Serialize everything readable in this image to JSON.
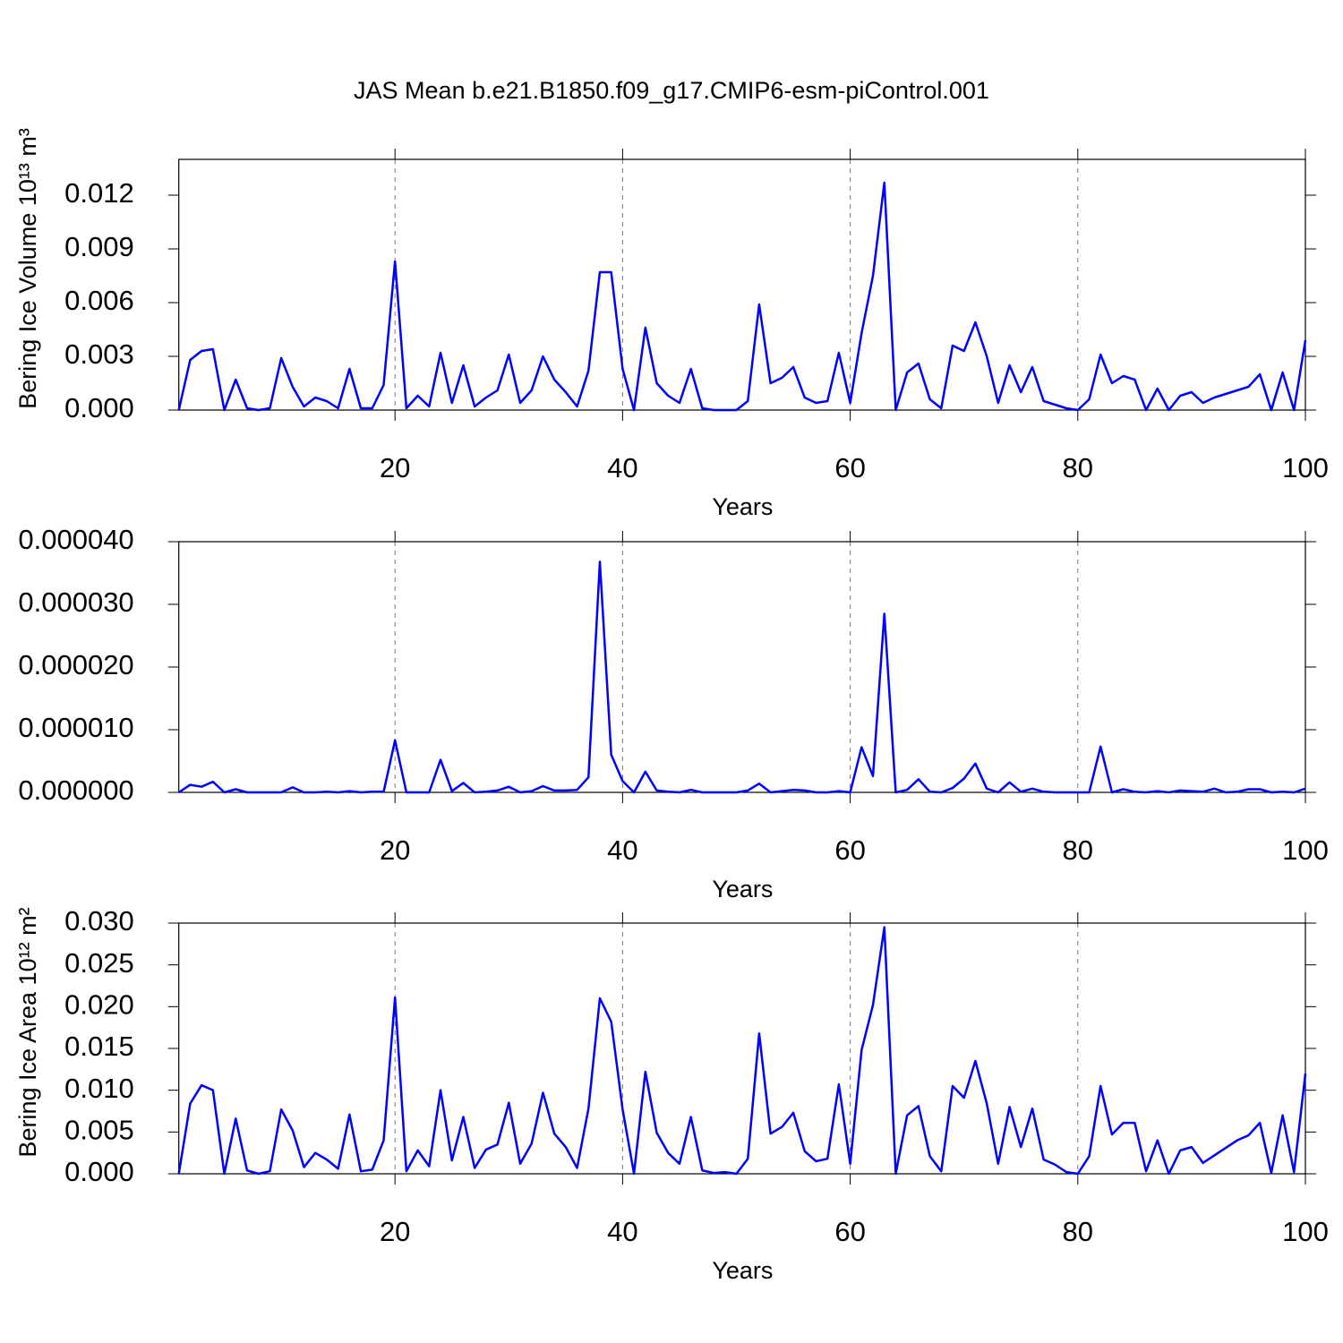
{
  "chart_data": [
    {
      "type": "line",
      "title": "JAS Mean b.e21.B1850.f09_g17.CMIP6-esm-piControl.001",
      "xlabel": "Years",
      "ylabel": "Bering Ice Volume 10¹³ m³",
      "grid": true,
      "x": [
        1,
        2,
        3,
        4,
        5,
        6,
        7,
        8,
        9,
        10,
        11,
        12,
        13,
        14,
        15,
        16,
        17,
        18,
        19,
        20,
        21,
        22,
        23,
        24,
        25,
        26,
        27,
        28,
        29,
        30,
        31,
        32,
        33,
        34,
        35,
        36,
        37,
        38,
        39,
        40,
        41,
        42,
        43,
        44,
        45,
        46,
        47,
        48,
        49,
        50,
        51,
        52,
        53,
        54,
        55,
        56,
        57,
        58,
        59,
        60,
        61,
        62,
        63,
        64,
        65,
        66,
        67,
        68,
        69,
        70,
        71,
        72,
        73,
        74,
        75,
        76,
        77,
        78,
        79,
        80,
        81,
        82,
        83,
        84,
        85,
        86,
        87,
        88,
        89,
        90,
        91,
        92,
        93,
        94,
        95,
        96,
        97,
        98,
        99,
        100
      ],
      "series": [
        {
          "color": "#0000ff",
          "values": [
            0,
            0.0028,
            0.0033,
            0.0034,
            0,
            0.0017,
            0.0001,
            0,
            0.0001,
            0.0029,
            0.0013,
            0.0002,
            0.0007,
            0.0005,
            0.0001,
            0.0023,
            0.0001,
            0.0001,
            0.0014,
            0.0083,
            0.0001,
            0.0008,
            0.0002,
            0.0032,
            0.0004,
            0.0025,
            0.0002,
            0.0007,
            0.0011,
            0.0031,
            0.0004,
            0.0011,
            0.003,
            0.0017,
            0.001,
            0.0002,
            0.0022,
            0.0077,
            0.0077,
            0.0023,
            0,
            0.0046,
            0.0015,
            0.0008,
            0.0004,
            0.0023,
            0.0001,
            0,
            0,
            0,
            0.0005,
            0.0059,
            0.0015,
            0.0018,
            0.0024,
            0.0007,
            0.0004,
            0.0005,
            0.0032,
            0.0004,
            0.0043,
            0.0075,
            0.0127,
            0,
            0.0021,
            0.0026,
            0.0006,
            0.0001,
            0.0036,
            0.0033,
            0.0049,
            0.003,
            0.0004,
            0.0025,
            0.001,
            0.0024,
            0.0005,
            0.0003,
            0.0001,
            0,
            0.0006,
            0.0031,
            0.0015,
            0.0019,
            0.0017,
            0,
            0.0012,
            0,
            0.0008,
            0.001,
            0.0004,
            0.0007,
            0.0009,
            0.0011,
            0.0013,
            0.002,
            0,
            0.0021,
            0,
            0.0039
          ]
        }
      ],
      "xlim": [
        1,
        100
      ],
      "xticks": [
        20,
        40,
        60,
        80,
        100
      ],
      "ylim": [
        0,
        0.014
      ],
      "yticks": [
        {
          "value": 0,
          "label": "0.000"
        },
        0.003,
        0.006,
        0.009,
        0.012
      ]
    },
    {
      "type": "line",
      "xlabel": "Years",
      "grid": true,
      "x": [
        1,
        2,
        3,
        4,
        5,
        6,
        7,
        8,
        9,
        10,
        11,
        12,
        13,
        14,
        15,
        16,
        17,
        18,
        19,
        20,
        21,
        22,
        23,
        24,
        25,
        26,
        27,
        28,
        29,
        30,
        31,
        32,
        33,
        34,
        35,
        36,
        37,
        38,
        39,
        40,
        41,
        42,
        43,
        44,
        45,
        46,
        47,
        48,
        49,
        50,
        51,
        52,
        53,
        54,
        55,
        56,
        57,
        58,
        59,
        60,
        61,
        62,
        63,
        64,
        65,
        66,
        67,
        68,
        69,
        70,
        71,
        72,
        73,
        74,
        75,
        76,
        77,
        78,
        79,
        80,
        81,
        82,
        83,
        84,
        85,
        86,
        87,
        88,
        89,
        90,
        91,
        92,
        93,
        94,
        95,
        96,
        97,
        98,
        99,
        100
      ],
      "series": [
        {
          "color": "#0000ff",
          "values": [
            0,
            1.2e-06,
            9e-07,
            1.7e-06,
            0,
            5e-07,
            0,
            0,
            0,
            0,
            8e-07,
            0,
            0,
            1e-07,
            0,
            2e-07,
            0,
            1e-07,
            1e-07,
            8.3e-06,
            0,
            0,
            0,
            5.2e-06,
            2e-07,
            1.5e-06,
            0,
            1e-07,
            3e-07,
            9e-07,
            0,
            2e-07,
            1e-06,
            3e-07,
            3e-07,
            4e-07,
            2.4e-06,
            3.68e-05,
            6e-06,
            1.8e-06,
            0,
            3.3e-06,
            3e-07,
            1e-07,
            0,
            4e-07,
            0,
            0,
            0,
            0,
            3e-07,
            1.4e-06,
            0,
            2e-07,
            4e-07,
            3e-07,
            0,
            0,
            2e-07,
            0,
            7.2e-06,
            2.6e-06,
            2.85e-05,
            0,
            4e-07,
            2.1e-06,
            1e-07,
            0,
            7e-07,
            2.2e-06,
            4.6e-06,
            6e-07,
            0,
            1.6e-06,
            1e-07,
            6e-07,
            1e-07,
            0,
            0,
            0,
            0,
            7.3e-06,
            0,
            5e-07,
            1e-07,
            0,
            2e-07,
            0,
            3e-07,
            2e-07,
            1e-07,
            6e-07,
            0,
            1e-07,
            5e-07,
            5e-07,
            0,
            1e-07,
            0,
            6e-07
          ]
        }
      ],
      "xlim": [
        1,
        100
      ],
      "xticks": [
        20,
        40,
        60,
        80,
        100
      ],
      "ylim": [
        0,
        4e-05
      ],
      "yticks": [
        {
          "value": 0,
          "label": "0.000000"
        },
        {
          "value": 1e-05,
          "label": "0.000010"
        },
        {
          "value": 2e-05,
          "label": "0.000020"
        },
        {
          "value": 3e-05,
          "label": "0.000030"
        },
        {
          "value": 4e-05,
          "label": "0.000040"
        }
      ]
    },
    {
      "type": "line",
      "xlabel": "Years",
      "ylabel": "Bering Ice Area 10¹² m²",
      "grid": true,
      "x": [
        1,
        2,
        3,
        4,
        5,
        6,
        7,
        8,
        9,
        10,
        11,
        12,
        13,
        14,
        15,
        16,
        17,
        18,
        19,
        20,
        21,
        22,
        23,
        24,
        25,
        26,
        27,
        28,
        29,
        30,
        31,
        32,
        33,
        34,
        35,
        36,
        37,
        38,
        39,
        40,
        41,
        42,
        43,
        44,
        45,
        46,
        47,
        48,
        49,
        50,
        51,
        52,
        53,
        54,
        55,
        56,
        57,
        58,
        59,
        60,
        61,
        62,
        63,
        64,
        65,
        66,
        67,
        68,
        69,
        70,
        71,
        72,
        73,
        74,
        75,
        76,
        77,
        78,
        79,
        80,
        81,
        82,
        83,
        84,
        85,
        86,
        87,
        88,
        89,
        90,
        91,
        92,
        93,
        94,
        95,
        96,
        97,
        98,
        99,
        100
      ],
      "series": [
        {
          "color": "#0000ff",
          "values": [
            0,
            0.0084,
            0.0106,
            0.01,
            0,
            0.0066,
            0.0004,
            0,
            0.0003,
            0.0077,
            0.0052,
            0.0008,
            0.0025,
            0.0017,
            0.0006,
            0.0071,
            0.0003,
            0.0005,
            0.004,
            0.0211,
            0.0003,
            0.0028,
            0.0009,
            0.01,
            0.0016,
            0.0068,
            0.0007,
            0.0029,
            0.0035,
            0.0085,
            0.0012,
            0.0036,
            0.0097,
            0.0048,
            0.0032,
            0.0007,
            0.0078,
            0.021,
            0.0182,
            0.0077,
            0,
            0.0122,
            0.0049,
            0.0025,
            0.0012,
            0.0068,
            0.0004,
            0.0001,
            0.0002,
            0,
            0.0018,
            0.0168,
            0.0048,
            0.0056,
            0.0073,
            0.0027,
            0.0015,
            0.0018,
            0.0107,
            0.0012,
            0.0148,
            0.0202,
            0.0295,
            0,
            0.007,
            0.0081,
            0.0021,
            0.0003,
            0.0105,
            0.0091,
            0.0135,
            0.0084,
            0.0012,
            0.008,
            0.0032,
            0.0078,
            0.0017,
            0.0011,
            0.0002,
            0,
            0.0021,
            0.0105,
            0.0047,
            0.0061,
            0.0061,
            0.0003,
            0.004,
            0,
            0.0028,
            0.0032,
            0.0013,
            0.0022,
            0.0031,
            0.004,
            0.0046,
            0.0061,
            0.0001,
            0.007,
            0.0002,
            0.012
          ]
        }
      ],
      "xlim": [
        1,
        100
      ],
      "xticks": [
        20,
        40,
        60,
        80,
        100
      ],
      "ylim": [
        0,
        0.03
      ],
      "yticks": [
        {
          "value": 0,
          "label": "0.000"
        },
        0.005,
        {
          "value": 0.01,
          "label": "0.010"
        },
        0.015,
        {
          "value": 0.02,
          "label": "0.020"
        },
        0.025,
        {
          "value": 0.03,
          "label": "0.030"
        }
      ]
    }
  ]
}
